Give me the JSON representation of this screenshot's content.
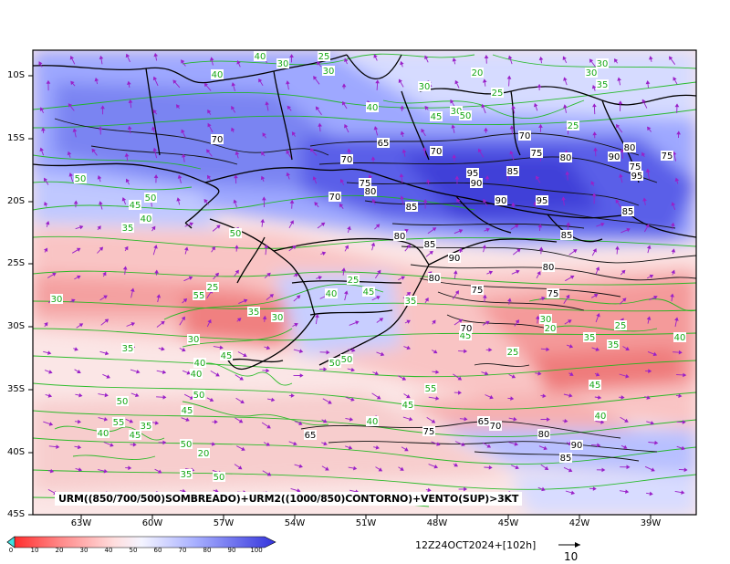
{
  "map": {
    "caption": "URM((850/700/500)SOMBREADO)+URM2((1000/850)CONTORNO)+VENTO(SUP)>3KT",
    "timestamp": "12Z24OCT2024+[102h]",
    "vector_reference_label": "10",
    "lat_labels": [
      "10S",
      "15S",
      "20S",
      "25S",
      "30S",
      "35S",
      "40S",
      "45S"
    ],
    "lon_labels": [
      "63W",
      "60W",
      "57W",
      "54W",
      "51W",
      "48W",
      "45W",
      "42W",
      "39W"
    ],
    "colorbar": {
      "ticks": [
        "0",
        "10",
        "20",
        "30",
        "40",
        "50",
        "60",
        "70",
        "80",
        "90",
        "100"
      ],
      "colors": [
        "#ff3030",
        "#ff6a6a",
        "#ff9a9a",
        "#ffc8c8",
        "#ffe8e8",
        "#e8ecff",
        "#c8d0ff",
        "#a0aaff",
        "#7c86ff",
        "#5a60f0",
        "#3a3ce0"
      ]
    },
    "green_contour_labels": [
      "40",
      "25",
      "30",
      "30",
      "40",
      "30",
      "25",
      "20",
      "30",
      "30",
      "35",
      "30",
      "40",
      "45",
      "50",
      "25",
      "50",
      "45",
      "50",
      "35",
      "40",
      "50",
      "55",
      "30",
      "35",
      "25",
      "30",
      "25",
      "40",
      "45",
      "35",
      "30",
      "45",
      "35",
      "40",
      "40",
      "50",
      "45",
      "50",
      "50",
      "55",
      "40",
      "45",
      "30",
      "20",
      "25",
      "35",
      "25",
      "35",
      "40",
      "45",
      "40",
      "45",
      "50",
      "55",
      "35",
      "40",
      "45",
      "50",
      "20",
      "35",
      "50"
    ],
    "black_contour_labels": [
      "70",
      "65",
      "70",
      "70",
      "70",
      "75",
      "80",
      "75",
      "95",
      "85",
      "90",
      "75",
      "75",
      "80",
      "90",
      "95",
      "70",
      "80",
      "85",
      "90",
      "95",
      "85",
      "85",
      "80",
      "85",
      "90",
      "80",
      "80",
      "75",
      "75",
      "70",
      "65",
      "75",
      "65",
      "70",
      "80",
      "90",
      "85"
    ]
  }
}
